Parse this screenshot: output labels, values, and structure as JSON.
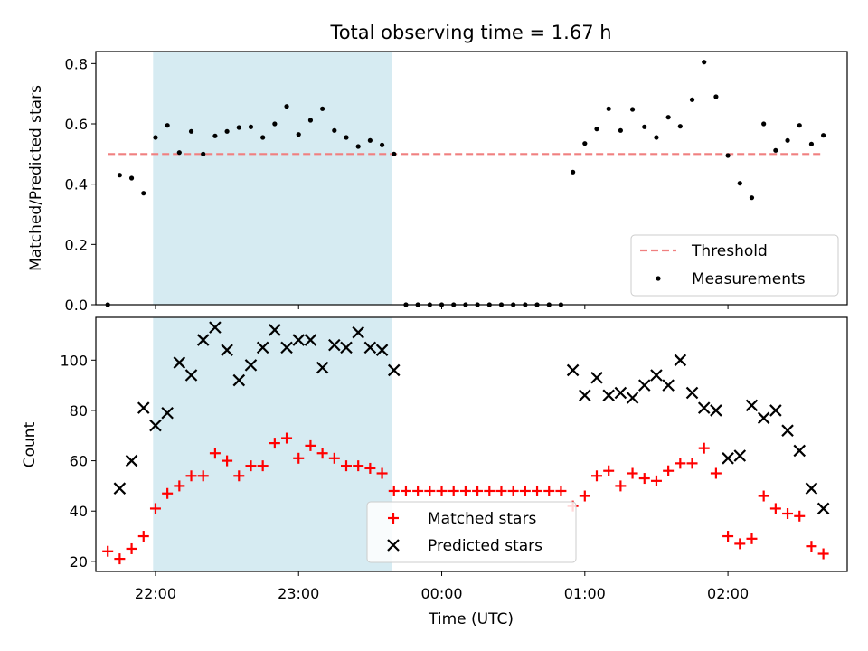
{
  "chart_data": {
    "title": "Total observing time = 1.67 h",
    "xlabel": "Time (UTC)",
    "x_ticks": [
      "22:00",
      "23:00",
      "00:00",
      "01:00",
      "02:00"
    ],
    "shaded_span": [
      "21:59",
      "23:39"
    ],
    "top": {
      "type": "scatter",
      "ylabel": "Matched/Predicted stars",
      "ylim": [
        0,
        0.84
      ],
      "y_ticks": [
        "0.0",
        "0.2",
        "0.4",
        "0.6",
        "0.8"
      ],
      "threshold": {
        "name": "Threshold",
        "value": 0.5,
        "x_range": [
          "21:40",
          "02:40"
        ],
        "color": "#f08080"
      },
      "measurements": {
        "name": "Measurements",
        "color": "#000000",
        "points": [
          [
            "21:40",
            0.0
          ],
          [
            "21:45",
            0.43
          ],
          [
            "21:50",
            0.42
          ],
          [
            "21:55",
            0.37
          ],
          [
            "22:00",
            0.555
          ],
          [
            "22:05",
            0.595
          ],
          [
            "22:10",
            0.505
          ],
          [
            "22:15",
            0.575
          ],
          [
            "22:20",
            0.5
          ],
          [
            "22:25",
            0.56
          ],
          [
            "22:30",
            0.575
          ],
          [
            "22:35",
            0.588
          ],
          [
            "22:40",
            0.59
          ],
          [
            "22:45",
            0.555
          ],
          [
            "22:50",
            0.6
          ],
          [
            "22:55",
            0.658
          ],
          [
            "23:00",
            0.565
          ],
          [
            "23:05",
            0.612
          ],
          [
            "23:10",
            0.65
          ],
          [
            "23:15",
            0.578
          ],
          [
            "23:20",
            0.555
          ],
          [
            "23:25",
            0.525
          ],
          [
            "23:30",
            0.545
          ],
          [
            "23:35",
            0.53
          ],
          [
            "23:40",
            0.5
          ],
          [
            "23:45",
            0.0
          ],
          [
            "23:50",
            0.0
          ],
          [
            "23:55",
            0.0
          ],
          [
            "00:00",
            0.0
          ],
          [
            "00:05",
            0.0
          ],
          [
            "00:10",
            0.0
          ],
          [
            "00:15",
            0.0
          ],
          [
            "00:20",
            0.0
          ],
          [
            "00:25",
            0.0
          ],
          [
            "00:30",
            0.0
          ],
          [
            "00:35",
            0.0
          ],
          [
            "00:40",
            0.0
          ],
          [
            "00:45",
            0.0
          ],
          [
            "00:50",
            0.0
          ],
          [
            "00:55",
            0.44
          ],
          [
            "01:00",
            0.535
          ],
          [
            "01:05",
            0.583
          ],
          [
            "01:10",
            0.65
          ],
          [
            "01:15",
            0.578
          ],
          [
            "01:20",
            0.648
          ],
          [
            "01:25",
            0.59
          ],
          [
            "01:30",
            0.555
          ],
          [
            "01:35",
            0.622
          ],
          [
            "01:40",
            0.592
          ],
          [
            "01:45",
            0.68
          ],
          [
            "01:50",
            0.805
          ],
          [
            "01:55",
            0.69
          ],
          [
            "02:00",
            0.495
          ],
          [
            "02:05",
            0.403
          ],
          [
            "02:10",
            0.355
          ],
          [
            "02:15",
            0.6
          ],
          [
            "02:20",
            0.512
          ],
          [
            "02:25",
            0.545
          ],
          [
            "02:30",
            0.595
          ],
          [
            "02:35",
            0.533
          ],
          [
            "02:40",
            0.562
          ]
        ]
      },
      "legend_position": "lower right"
    },
    "bottom": {
      "type": "scatter",
      "ylabel": "Count",
      "ylim": [
        16,
        117
      ],
      "y_ticks": [
        "20",
        "40",
        "60",
        "80",
        "100"
      ],
      "series": [
        {
          "name": "Matched stars",
          "marker": "plus",
          "color": "#ff0000",
          "points": [
            [
              "21:40",
              24
            ],
            [
              "21:45",
              21
            ],
            [
              "21:50",
              25
            ],
            [
              "21:55",
              30
            ],
            [
              "22:00",
              41
            ],
            [
              "22:05",
              47
            ],
            [
              "22:10",
              50
            ],
            [
              "22:15",
              54
            ],
            [
              "22:20",
              54
            ],
            [
              "22:25",
              63
            ],
            [
              "22:30",
              60
            ],
            [
              "22:35",
              54
            ],
            [
              "22:40",
              58
            ],
            [
              "22:45",
              58
            ],
            [
              "22:50",
              67
            ],
            [
              "22:55",
              69
            ],
            [
              "23:00",
              61
            ],
            [
              "23:05",
              66
            ],
            [
              "23:10",
              63
            ],
            [
              "23:15",
              61
            ],
            [
              "23:20",
              58
            ],
            [
              "23:25",
              58
            ],
            [
              "23:30",
              57
            ],
            [
              "23:35",
              55
            ],
            [
              "23:40",
              48
            ],
            [
              "23:45",
              48
            ],
            [
              "23:50",
              48
            ],
            [
              "23:55",
              48
            ],
            [
              "00:00",
              48
            ],
            [
              "00:05",
              48
            ],
            [
              "00:10",
              48
            ],
            [
              "00:15",
              48
            ],
            [
              "00:20",
              48
            ],
            [
              "00:25",
              48
            ],
            [
              "00:30",
              48
            ],
            [
              "00:35",
              48
            ],
            [
              "00:40",
              48
            ],
            [
              "00:45",
              48
            ],
            [
              "00:50",
              48
            ],
            [
              "00:55",
              42
            ],
            [
              "01:00",
              46
            ],
            [
              "01:05",
              54
            ],
            [
              "01:10",
              56
            ],
            [
              "01:15",
              50
            ],
            [
              "01:20",
              55
            ],
            [
              "01:25",
              53
            ],
            [
              "01:30",
              52
            ],
            [
              "01:35",
              56
            ],
            [
              "01:40",
              59
            ],
            [
              "01:45",
              59
            ],
            [
              "01:50",
              65
            ],
            [
              "01:55",
              55
            ],
            [
              "02:00",
              30
            ],
            [
              "02:05",
              27
            ],
            [
              "02:10",
              29
            ],
            [
              "02:15",
              46
            ],
            [
              "02:20",
              41
            ],
            [
              "02:25",
              39
            ],
            [
              "02:30",
              38
            ],
            [
              "02:35",
              26
            ],
            [
              "02:40",
              23
            ]
          ]
        },
        {
          "name": "Predicted stars",
          "marker": "x",
          "color": "#000000",
          "points": [
            [
              "21:45",
              49
            ],
            [
              "21:50",
              60
            ],
            [
              "21:55",
              81
            ],
            [
              "22:00",
              74
            ],
            [
              "22:05",
              79
            ],
            [
              "22:10",
              99
            ],
            [
              "22:15",
              94
            ],
            [
              "22:20",
              108
            ],
            [
              "22:25",
              113
            ],
            [
              "22:30",
              104
            ],
            [
              "22:35",
              92
            ],
            [
              "22:40",
              98
            ],
            [
              "22:45",
              105
            ],
            [
              "22:50",
              112
            ],
            [
              "22:55",
              105
            ],
            [
              "23:00",
              108
            ],
            [
              "23:05",
              108
            ],
            [
              "23:10",
              97
            ],
            [
              "23:15",
              106
            ],
            [
              "23:20",
              105
            ],
            [
              "23:25",
              111
            ],
            [
              "23:30",
              105
            ],
            [
              "23:35",
              104
            ],
            [
              "23:40",
              96
            ],
            [
              "00:55",
              96
            ],
            [
              "01:00",
              86
            ],
            [
              "01:05",
              93
            ],
            [
              "01:10",
              86
            ],
            [
              "01:15",
              87
            ],
            [
              "01:20",
              85
            ],
            [
              "01:25",
              90
            ],
            [
              "01:30",
              94
            ],
            [
              "01:35",
              90
            ],
            [
              "01:40",
              100
            ],
            [
              "01:45",
              87
            ],
            [
              "01:50",
              81
            ],
            [
              "01:55",
              80
            ],
            [
              "02:00",
              61
            ],
            [
              "02:05",
              62
            ],
            [
              "02:10",
              82
            ],
            [
              "02:15",
              77
            ],
            [
              "02:20",
              80
            ],
            [
              "02:25",
              72
            ],
            [
              "02:30",
              64
            ],
            [
              "02:35",
              49
            ],
            [
              "02:40",
              41
            ]
          ]
        }
      ],
      "legend_position": "lower center"
    }
  }
}
